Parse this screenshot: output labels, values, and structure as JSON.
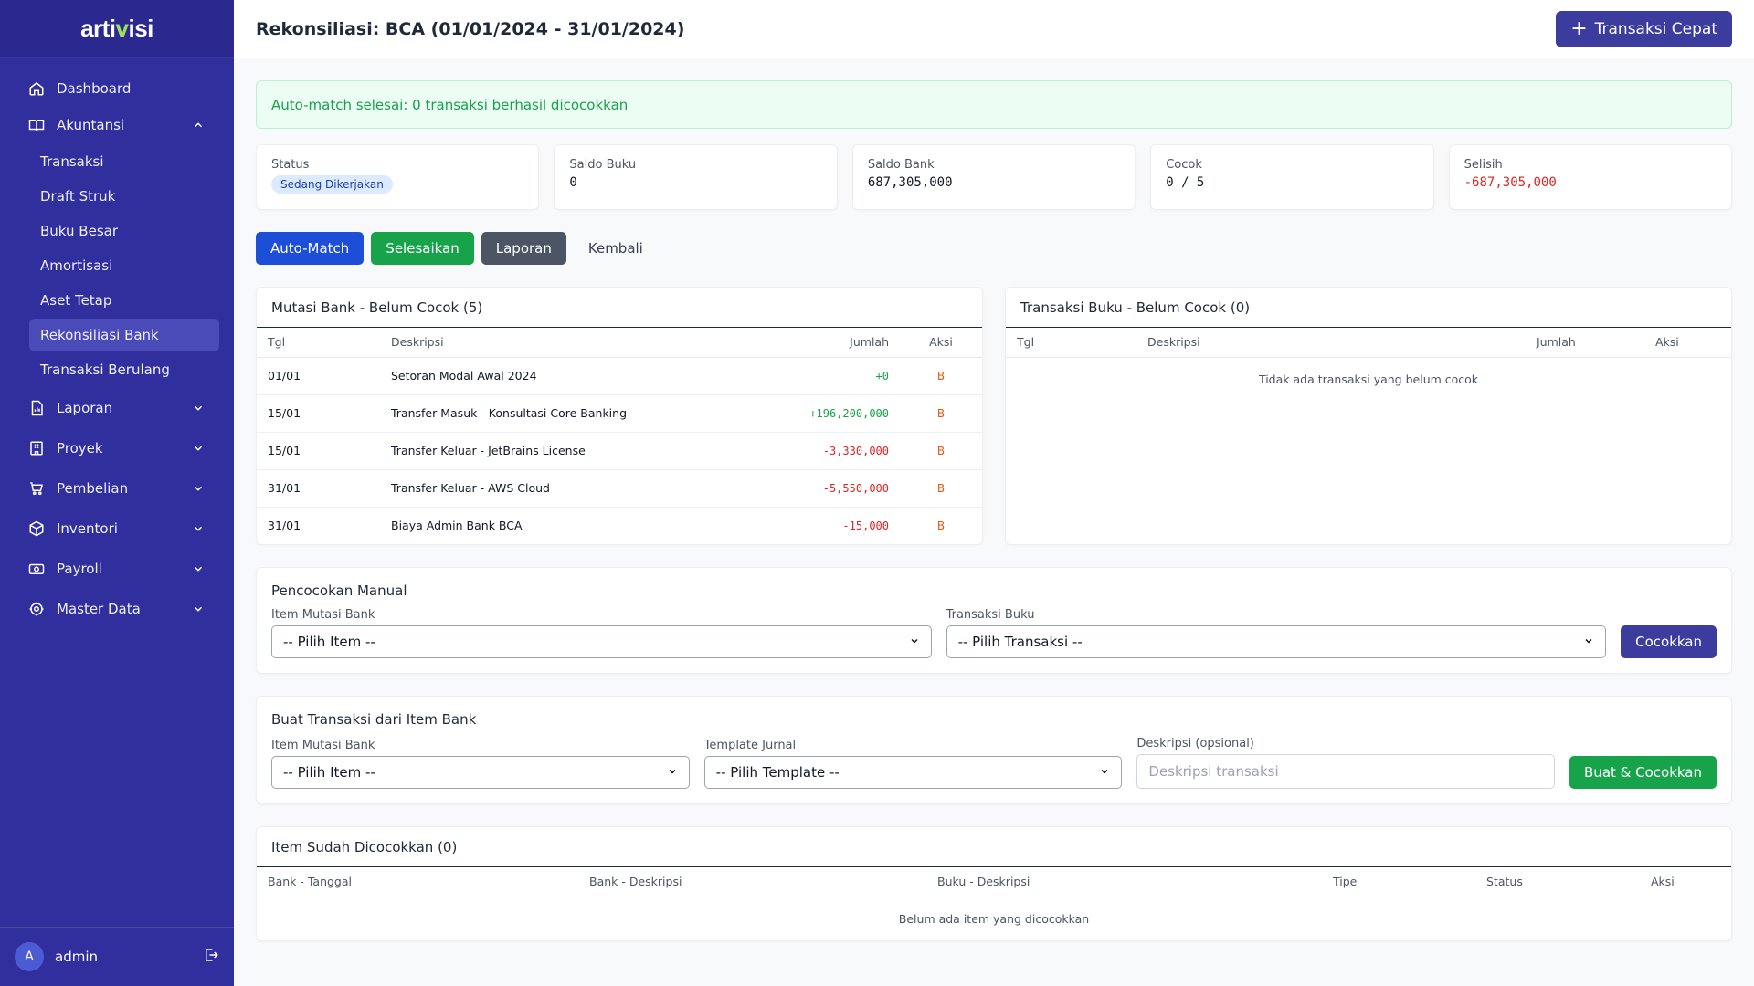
{
  "brand": {
    "logo_text_a": "arti",
    "logo_text_b": "v",
    "logo_text_c": "isi"
  },
  "sidebar": {
    "items": [
      {
        "label": "Dashboard"
      },
      {
        "label": "Akuntansi"
      },
      {
        "label": "Laporan"
      },
      {
        "label": "Proyek"
      },
      {
        "label": "Pembelian"
      },
      {
        "label": "Inventori"
      },
      {
        "label": "Payroll"
      },
      {
        "label": "Master Data"
      }
    ],
    "sub_items": [
      "Transaksi",
      "Draft Struk",
      "Buku Besar",
      "Amortisasi",
      "Aset Tetap",
      "Rekonsiliasi Bank",
      "Transaksi Berulang"
    ],
    "active_sub": "Rekonsiliasi Bank"
  },
  "user": {
    "initial": "A",
    "name": "admin"
  },
  "header": {
    "title": "Rekonsiliasi: BCA (01/01/2024 - 31/01/2024)",
    "quick_button": "Transaksi Cepat"
  },
  "alert": {
    "text": "Auto-match selesai: 0 transaksi berhasil dicocokkan"
  },
  "stats": {
    "status_label": "Status",
    "status_value": "Sedang Dikerjakan",
    "saldo_buku_label": "Saldo Buku",
    "saldo_buku_value": "0",
    "saldo_bank_label": "Saldo Bank",
    "saldo_bank_value": "687,305,000",
    "cocok_label": "Cocok",
    "cocok_value": "0 / 5",
    "selisih_label": "Selisih",
    "selisih_value": "-687,305,000"
  },
  "actions": {
    "auto_match": "Auto-Match",
    "selesaikan": "Selesaikan",
    "laporan": "Laporan",
    "kembali": "Kembali"
  },
  "bank_panel": {
    "title": "Mutasi Bank - Belum Cocok (5)",
    "headers": {
      "tgl": "Tgl",
      "deskripsi": "Deskripsi",
      "jumlah": "Jumlah",
      "aksi": "Aksi"
    },
    "rows": [
      {
        "tgl": "01/01",
        "deskripsi": "Setoran Modal Awal 2024",
        "jumlah": "+0",
        "aksi": "B"
      },
      {
        "tgl": "15/01",
        "deskripsi": "Transfer Masuk - Konsultasi Core Banking",
        "jumlah": "+196,200,000",
        "aksi": "B"
      },
      {
        "tgl": "15/01",
        "deskripsi": "Transfer Keluar - JetBrains License",
        "jumlah": "-3,330,000",
        "aksi": "B"
      },
      {
        "tgl": "31/01",
        "deskripsi": "Transfer Keluar - AWS Cloud",
        "jumlah": "-5,550,000",
        "aksi": "B"
      },
      {
        "tgl": "31/01",
        "deskripsi": "Biaya Admin Bank BCA",
        "jumlah": "-15,000",
        "aksi": "B"
      }
    ]
  },
  "book_panel": {
    "title": "Transaksi Buku - Belum Cocok (0)",
    "headers": {
      "tgl": "Tgl",
      "deskripsi": "Deskripsi",
      "jumlah": "Jumlah",
      "aksi": "Aksi"
    },
    "empty": "Tidak ada transaksi yang belum cocok"
  },
  "manual": {
    "title": "Pencocokan Manual",
    "bank_label": "Item Mutasi Bank",
    "bank_value": "-- Pilih Item --",
    "book_label": "Transaksi Buku",
    "book_value": "-- Pilih Transaksi --",
    "button": "Cocokkan"
  },
  "create": {
    "title": "Buat Transaksi dari Item Bank",
    "bank_label": "Item Mutasi Bank",
    "bank_value": "-- Pilih Item --",
    "template_label": "Template Jurnal",
    "template_value": "-- Pilih Template --",
    "desc_label": "Deskripsi (opsional)",
    "desc_placeholder": "Deskripsi transaksi",
    "button": "Buat & Cocokkan"
  },
  "matched": {
    "title": "Item Sudah Dicocokkan (0)",
    "headers": {
      "bank_tanggal": "Bank - Tanggal",
      "bank_deskripsi": "Bank - Deskripsi",
      "buku_deskripsi": "Buku - Deskripsi",
      "tipe": "Tipe",
      "status": "Status",
      "aksi": "Aksi"
    },
    "empty": "Belum ada item yang dicocokkan"
  },
  "colors": {
    "sidebar": "#312e9e",
    "primary": "#3c3c9f",
    "success": "#16a34a",
    "danger": "#dc2626",
    "accent": "#9be15d"
  }
}
